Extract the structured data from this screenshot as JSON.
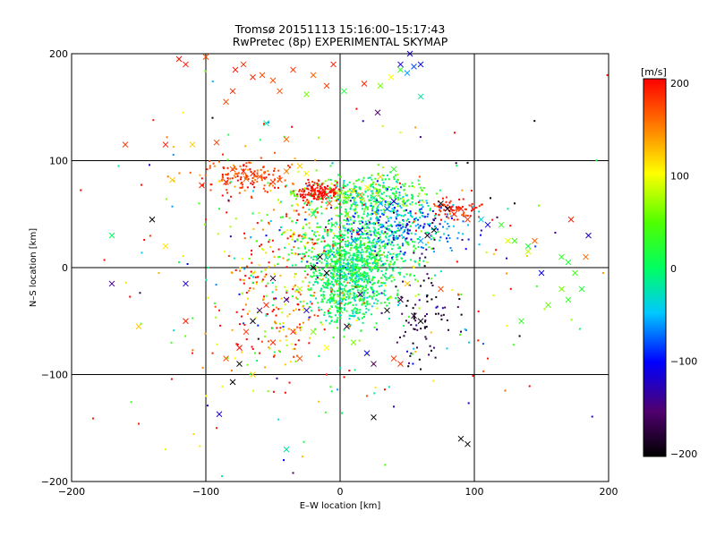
{
  "chart_data": {
    "type": "scatter",
    "title": "Tromsø 20151113 15:16:00–15:17:43",
    "subtitle": "RwPretec (8p) EXPERIMENTAL SKYMAP",
    "xlabel": "E–W location [km]",
    "ylabel": "N–S location [km]",
    "xlim": [
      -200,
      200
    ],
    "ylim": [
      -200,
      200
    ],
    "xticks": [
      "−200",
      "−100",
      "0",
      "100",
      "200"
    ],
    "yticks": [
      "−200",
      "−100",
      "0",
      "100",
      "200"
    ],
    "grid": true,
    "colorbar": {
      "label": "[m/s]",
      "range": [
        -200,
        200
      ],
      "ticks": [
        "200",
        "100",
        "0",
        "−100",
        "−200"
      ]
    },
    "crosses": [
      [
        -120,
        195,
        195
      ],
      [
        -115,
        190,
        190
      ],
      [
        -100,
        197,
        170
      ],
      [
        -78,
        185,
        195
      ],
      [
        -72,
        190,
        180
      ],
      [
        -65,
        178,
        185
      ],
      [
        -58,
        180,
        170
      ],
      [
        -50,
        175,
        170
      ],
      [
        -35,
        185,
        180
      ],
      [
        -20,
        180,
        160
      ],
      [
        -10,
        170,
        175
      ],
      [
        -5,
        190,
        190
      ],
      [
        -80,
        165,
        185
      ],
      [
        -45,
        165,
        170
      ],
      [
        -25,
        162,
        60
      ],
      [
        3,
        165,
        20
      ],
      [
        18,
        172,
        185
      ],
      [
        30,
        170,
        60
      ],
      [
        38,
        178,
        100
      ],
      [
        45,
        185,
        30
      ],
      [
        50,
        182,
        -60
      ],
      [
        55,
        188,
        -80
      ],
      [
        60,
        160,
        -20
      ],
      [
        45,
        190,
        -110
      ],
      [
        28,
        145,
        -150
      ],
      [
        52,
        200,
        -110
      ],
      [
        60,
        190,
        -100
      ],
      [
        -85,
        155,
        170
      ],
      [
        -55,
        135,
        -20
      ],
      [
        -40,
        120,
        160
      ],
      [
        -160,
        115,
        180
      ],
      [
        -130,
        115,
        190
      ],
      [
        -110,
        115,
        120
      ],
      [
        -92,
        117,
        175
      ],
      [
        -125,
        82,
        120
      ],
      [
        -103,
        77,
        190
      ],
      [
        -140,
        45,
        -200
      ],
      [
        -170,
        30,
        0
      ],
      [
        -130,
        20,
        110
      ],
      [
        -170,
        -15,
        -140
      ],
      [
        -115,
        -15,
        -120
      ],
      [
        -115,
        -50,
        190
      ],
      [
        -150,
        -55,
        120
      ],
      [
        -75,
        -90,
        -200
      ],
      [
        -80,
        -107,
        -200
      ],
      [
        -65,
        -100,
        120
      ],
      [
        -90,
        -137,
        -120
      ],
      [
        -40,
        -170,
        -20
      ],
      [
        105,
        45,
        -40
      ],
      [
        110,
        40,
        -110
      ],
      [
        120,
        40,
        30
      ],
      [
        125,
        25,
        90
      ],
      [
        130,
        25,
        40
      ],
      [
        140,
        20,
        20
      ],
      [
        145,
        25,
        160
      ],
      [
        150,
        -5,
        -110
      ],
      [
        165,
        10,
        30
      ],
      [
        170,
        5,
        20
      ],
      [
        175,
        -5,
        40
      ],
      [
        165,
        -20,
        60
      ],
      [
        170,
        -30,
        30
      ],
      [
        180,
        -20,
        20
      ],
      [
        185,
        30,
        -120
      ],
      [
        183,
        10,
        160
      ],
      [
        172,
        45,
        190
      ],
      [
        155,
        -35,
        50
      ],
      [
        140,
        15,
        80
      ],
      [
        135,
        -50,
        30
      ],
      [
        -50,
        -10,
        -180
      ],
      [
        -55,
        -35,
        190
      ],
      [
        -60,
        -40,
        -160
      ],
      [
        -65,
        -50,
        -190
      ],
      [
        -40,
        -30,
        -140
      ],
      [
        -35,
        -60,
        190
      ],
      [
        -25,
        -40,
        -120
      ],
      [
        -20,
        -60,
        60
      ],
      [
        -50,
        -70,
        185
      ],
      [
        -70,
        -60,
        180
      ],
      [
        -75,
        -75,
        195
      ],
      [
        -85,
        -85,
        170
      ],
      [
        -30,
        -85,
        170
      ],
      [
        -10,
        -75,
        100
      ],
      [
        40,
        -85,
        180
      ],
      [
        45,
        -90,
        185
      ],
      [
        60,
        -50,
        -200
      ],
      [
        55,
        -45,
        -180
      ],
      [
        45,
        -30,
        -170
      ],
      [
        -20,
        0,
        -200
      ],
      [
        -15,
        10,
        -190
      ],
      [
        -10,
        -5,
        -200
      ],
      [
        0,
        -40,
        30
      ],
      [
        5,
        -55,
        -180
      ],
      [
        10,
        -70,
        60
      ],
      [
        20,
        -80,
        -100
      ],
      [
        25,
        -90,
        -160
      ],
      [
        60,
        25,
        -60
      ],
      [
        65,
        30,
        -180
      ],
      [
        70,
        35,
        -190
      ],
      [
        80,
        55,
        -200
      ],
      [
        85,
        50,
        190
      ],
      [
        90,
        55,
        195
      ],
      [
        95,
        45,
        180
      ],
      [
        75,
        60,
        -200
      ],
      [
        75,
        -20,
        170
      ],
      [
        50,
        -15,
        120
      ],
      [
        -5,
        72,
        190
      ],
      [
        -10,
        68,
        195
      ],
      [
        -15,
        70,
        200
      ],
      [
        -20,
        72,
        185
      ],
      [
        -8,
        60,
        170
      ],
      [
        0,
        70,
        80
      ],
      [
        5,
        65,
        50
      ],
      [
        10,
        72,
        110
      ],
      [
        15,
        68,
        140
      ],
      [
        20,
        75,
        100
      ],
      [
        25,
        65,
        -20
      ],
      [
        30,
        60,
        -60
      ],
      [
        35,
        55,
        -80
      ],
      [
        40,
        62,
        -110
      ],
      [
        -60,
        85,
        170
      ],
      [
        -65,
        88,
        185
      ],
      [
        -70,
        83,
        160
      ],
      [
        -72,
        90,
        190
      ],
      [
        -80,
        92,
        175
      ],
      [
        -85,
        80,
        190
      ],
      [
        -50,
        80,
        180
      ],
      [
        -45,
        82,
        170
      ],
      [
        -40,
        90,
        150
      ],
      [
        -30,
        95,
        120
      ],
      [
        -25,
        88,
        100
      ],
      [
        -35,
        70,
        60
      ],
      [
        15,
        -25,
        -150
      ],
      [
        35,
        -40,
        -200
      ],
      [
        -30,
        -20,
        80
      ],
      [
        90,
        -160,
        -200
      ],
      [
        95,
        -165,
        -200
      ],
      [
        25,
        -140,
        -200
      ],
      [
        0,
        10,
        40
      ],
      [
        10,
        25,
        -60
      ],
      [
        15,
        35,
        -100
      ],
      [
        -5,
        40,
        20
      ],
      [
        5,
        50,
        60
      ],
      [
        -20,
        50,
        10
      ],
      [
        30,
        85,
        120
      ],
      [
        40,
        92,
        30
      ]
    ],
    "points": [
      [
        -184,
        -141,
        190
      ],
      [
        -150,
        -146,
        190
      ],
      [
        -165,
        95,
        -20
      ],
      [
        -142,
        96,
        -110
      ],
      [
        -135,
        -5,
        130
      ],
      [
        -117,
        145,
        100
      ],
      [
        -105,
        60,
        40
      ],
      [
        -100,
        45,
        190
      ],
      [
        -95,
        140,
        -200
      ],
      [
        -90,
        55,
        20
      ],
      [
        -95,
        -80,
        190
      ],
      [
        -92,
        -150,
        190
      ],
      [
        -88,
        -195,
        -10
      ],
      [
        -60,
        -80,
        190
      ],
      [
        -55,
        -45,
        -20
      ],
      [
        -42,
        -180,
        -100
      ],
      [
        -35,
        -192,
        -160
      ],
      [
        -40,
        48,
        190
      ],
      [
        -45,
        35,
        -110
      ],
      [
        110,
        -85,
        190
      ],
      [
        123,
        -115,
        160
      ],
      [
        130,
        60,
        -200
      ],
      [
        117,
        47,
        -170
      ],
      [
        148,
        58,
        60
      ],
      [
        196,
        -5,
        140
      ],
      [
        199,
        180,
        190
      ],
      [
        -100,
        -120,
        100
      ],
      [
        -130,
        -170,
        90
      ],
      [
        -90,
        -40,
        190
      ],
      [
        -75,
        -25,
        -110
      ],
      [
        60,
        -95,
        -190
      ],
      [
        70,
        -75,
        -140
      ],
      [
        55,
        0,
        100
      ],
      [
        65,
        5,
        80
      ],
      [
        -10,
        -100,
        190
      ],
      [
        20,
        -120,
        170
      ],
      [
        40,
        -130,
        -120
      ],
      [
        95,
        98,
        -200
      ],
      [
        98,
        72,
        190
      ],
      [
        112,
        65,
        -200
      ],
      [
        125,
        55,
        -20
      ],
      [
        -60,
        20,
        190
      ],
      [
        -55,
        30,
        -100
      ],
      [
        -45,
        10,
        30
      ],
      [
        -40,
        50,
        190
      ],
      [
        -120,
        5,
        10
      ],
      [
        -110,
        -80,
        190
      ]
    ]
  }
}
